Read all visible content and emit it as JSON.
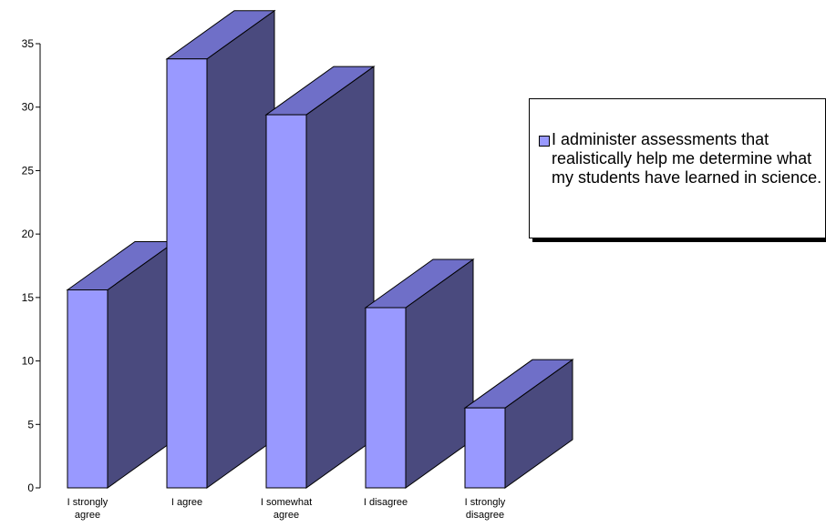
{
  "chart_data": {
    "type": "bar",
    "categories": [
      [
        "I strongly",
        "agree"
      ],
      [
        "I agree"
      ],
      [
        "I somewhat",
        "agree"
      ],
      [
        "I disagree"
      ],
      [
        "I strongly",
        "disagree"
      ]
    ],
    "series": [
      {
        "name": "I administer assessments that realistically help me determine what my students have learned in science.",
        "values": [
          15.6,
          33.8,
          29.4,
          14.2,
          6.3
        ],
        "colors": {
          "front": "#9999ff",
          "top": "#6f6fc8",
          "side": "#4a4a7e"
        }
      }
    ],
    "ylim": [
      0,
      35
    ],
    "yticks": [
      0,
      5,
      10,
      15,
      20,
      25,
      30,
      35
    ],
    "legend_position": "right",
    "style": "3d-column"
  }
}
